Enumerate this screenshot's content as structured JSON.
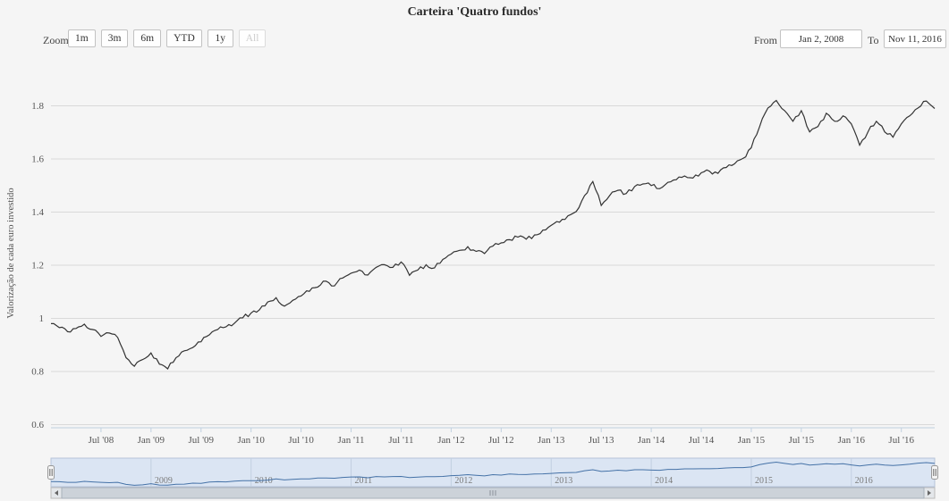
{
  "title": "Carteira 'Quatro fundos'",
  "range_selector": {
    "zoom_label": "Zoom",
    "buttons": [
      {
        "label": "1m",
        "enabled": true
      },
      {
        "label": "3m",
        "enabled": true
      },
      {
        "label": "6m",
        "enabled": true
      },
      {
        "label": "YTD",
        "enabled": true
      },
      {
        "label": "1y",
        "enabled": true
      },
      {
        "label": "All",
        "enabled": false
      }
    ],
    "from_label": "From",
    "from_value": "Jan 2, 2008",
    "to_label": "To",
    "to_value": "Nov 11, 2016"
  },
  "chart_data": {
    "type": "line",
    "title": "Carteira 'Quatro fundos'",
    "xlabel": "",
    "ylabel": "Valorização de cada euro investido",
    "ylim": [
      0.55,
      1.92
    ],
    "yticks": [
      0.6,
      0.8,
      1,
      1.2,
      1.4,
      1.6,
      1.8
    ],
    "xtick_labels": [
      "Jul '08",
      "Jan '09",
      "Jul '09",
      "Jan '10",
      "Jul '10",
      "Jan '11",
      "Jul '11",
      "Jan '12",
      "Jul '12",
      "Jan '13",
      "Jul '13",
      "Jan '14",
      "Jul '14",
      "Jan '15",
      "Jul '15",
      "Jan '16",
      "Jul '16"
    ],
    "x_range": [
      "Jan 2, 2008",
      "Nov 11, 2016"
    ],
    "grid": "horizontal-only",
    "legend": "none",
    "series": [
      {
        "name": "Carteira 'Quatro fundos'",
        "color": "#333333",
        "start_month": "2008-01",
        "end_month": "2016-11",
        "monthly_values": [
          0.98,
          0.965,
          0.95,
          0.962,
          0.978,
          0.958,
          0.932,
          0.945,
          0.928,
          0.852,
          0.82,
          0.845,
          0.87,
          0.828,
          0.81,
          0.852,
          0.878,
          0.89,
          0.912,
          0.938,
          0.958,
          0.968,
          0.982,
          1.002,
          1.02,
          1.032,
          1.062,
          1.078,
          1.046,
          1.068,
          1.084,
          1.102,
          1.118,
          1.14,
          1.122,
          1.152,
          1.17,
          1.182,
          1.163,
          1.192,
          1.202,
          1.192,
          1.212,
          1.162,
          1.182,
          1.202,
          1.19,
          1.222,
          1.242,
          1.256,
          1.27,
          1.252,
          1.244,
          1.272,
          1.284,
          1.296,
          1.306,
          1.298,
          1.314,
          1.332,
          1.35,
          1.362,
          1.386,
          1.402,
          1.462,
          1.515,
          1.425,
          1.462,
          1.482,
          1.47,
          1.496,
          1.506,
          1.5,
          1.488,
          1.512,
          1.522,
          1.536,
          1.528,
          1.548,
          1.554,
          1.546,
          1.568,
          1.582,
          1.602,
          1.642,
          1.722,
          1.792,
          1.82,
          1.782,
          1.742,
          1.782,
          1.702,
          1.722,
          1.772,
          1.742,
          1.762,
          1.732,
          1.652,
          1.702,
          1.742,
          1.702,
          1.682,
          1.732,
          1.762,
          1.792,
          1.818,
          1.79
        ]
      }
    ]
  },
  "navigator": {
    "year_labels": [
      "2009",
      "2010",
      "2011",
      "2012",
      "2013",
      "2014",
      "2015",
      "2016"
    ],
    "fill_color": "#dbe5f3",
    "outline_color": "#b6c3d8",
    "gridline_color": "#c2cfe0",
    "line_color": "#4572a7",
    "label_color": "#7a7a7a",
    "left_handle_icon": "drag-handle",
    "right_handle_icon": "drag-handle"
  },
  "scrollbar": {
    "left_arrow_icon": "triangle-left",
    "right_arrow_icon": "triangle-right",
    "grip_icon": "grip-lines",
    "track_color": "#ededee",
    "thumb_color": "#ccd2d9"
  },
  "colors": {
    "background": "#f5f5f5",
    "gridline": "#d9d9d9",
    "axis_line": "#c0d0e0",
    "axis_label": "#555555",
    "series_line": "#333333"
  }
}
